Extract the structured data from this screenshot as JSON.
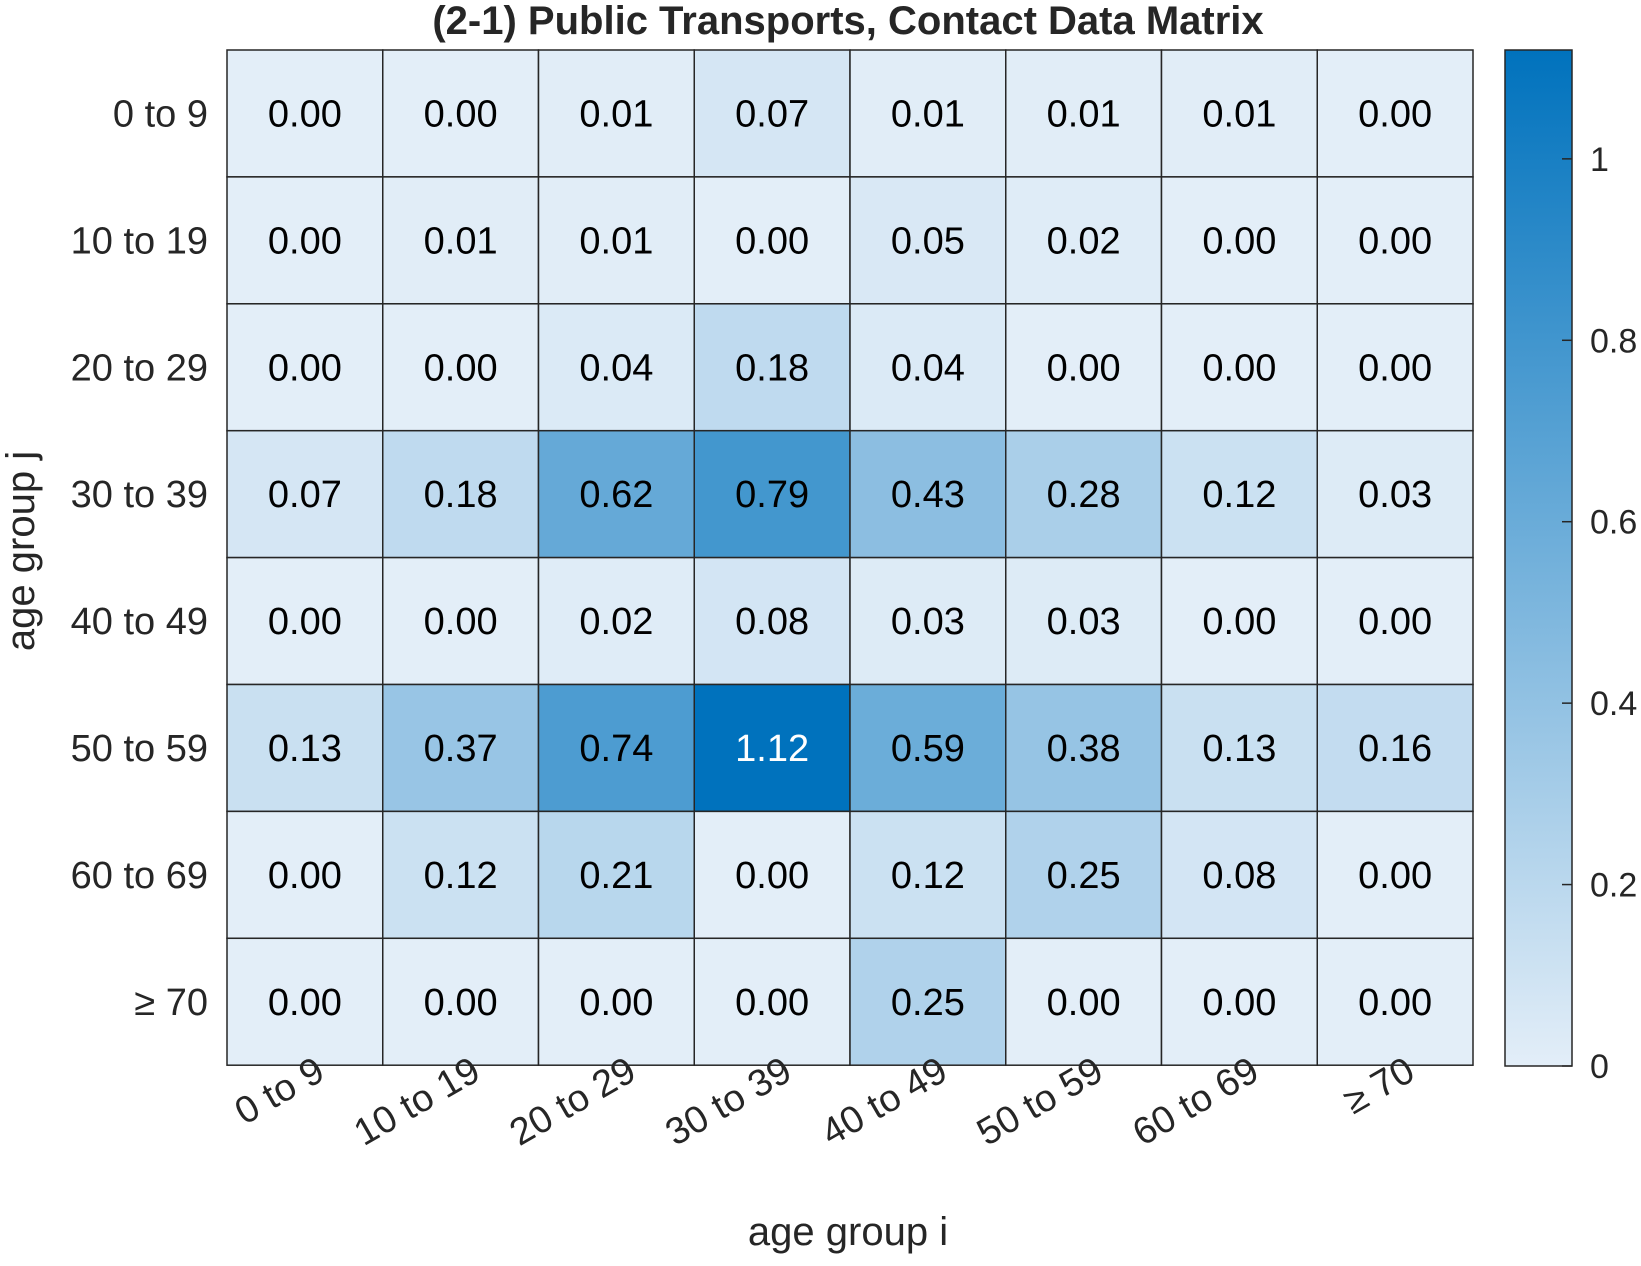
{
  "chart_data": {
    "type": "heatmap",
    "title": "(2-1) Public Transports, Contact Data Matrix",
    "xlabel": "age group i",
    "ylabel": "age group j",
    "x_categories": [
      "0 to 9",
      "10 to 19",
      "20 to 29",
      "30 to 39",
      "40 to 49",
      "50 to 59",
      "60 to 69",
      "≥ 70"
    ],
    "y_categories": [
      "0 to 9",
      "10 to 19",
      "20 to 29",
      "30 to 39",
      "40 to 49",
      "50 to 59",
      "60 to 69",
      "≥ 70"
    ],
    "values": [
      [
        0.0,
        0.0,
        0.01,
        0.07,
        0.01,
        0.01,
        0.01,
        0.0
      ],
      [
        0.0,
        0.01,
        0.01,
        0.0,
        0.05,
        0.02,
        0.0,
        0.0
      ],
      [
        0.0,
        0.0,
        0.04,
        0.18,
        0.04,
        0.0,
        0.0,
        0.0
      ],
      [
        0.07,
        0.18,
        0.62,
        0.79,
        0.43,
        0.28,
        0.12,
        0.03
      ],
      [
        0.0,
        0.0,
        0.02,
        0.08,
        0.03,
        0.03,
        0.0,
        0.0
      ],
      [
        0.13,
        0.37,
        0.74,
        1.12,
        0.59,
        0.38,
        0.13,
        0.16
      ],
      [
        0.0,
        0.12,
        0.21,
        0.0,
        0.12,
        0.25,
        0.08,
        0.0
      ],
      [
        0.0,
        0.0,
        0.0,
        0.0,
        0.25,
        0.0,
        0.0,
        0.0
      ]
    ],
    "value_labels": [
      [
        "0.00",
        "0.00",
        "0.01",
        "0.07",
        "0.01",
        "0.01",
        "0.01",
        "0.00"
      ],
      [
        "0.00",
        "0.01",
        "0.01",
        "0.00",
        "0.05",
        "0.02",
        "0.00",
        "0.00"
      ],
      [
        "0.00",
        "0.00",
        "0.04",
        "0.18",
        "0.04",
        "0.00",
        "0.00",
        "0.00"
      ],
      [
        "0.07",
        "0.18",
        "0.62",
        "0.79",
        "0.43",
        "0.28",
        "0.12",
        "0.03"
      ],
      [
        "0.00",
        "0.00",
        "0.02",
        "0.08",
        "0.03",
        "0.03",
        "0.00",
        "0.00"
      ],
      [
        "0.13",
        "0.37",
        "0.74",
        "1.12",
        "0.59",
        "0.38",
        "0.13",
        "0.16"
      ],
      [
        "0.00",
        "0.12",
        "0.21",
        "0.00",
        "0.12",
        "0.25",
        "0.08",
        "0.00"
      ],
      [
        "0.00",
        "0.00",
        "0.00",
        "0.00",
        "0.25",
        "0.00",
        "0.00",
        "0.00"
      ]
    ],
    "colorbar": {
      "range": [
        0,
        1.12
      ],
      "ticks": [
        0,
        0.2,
        0.4,
        0.6,
        0.8,
        1
      ],
      "tick_labels": [
        "0",
        "0.2",
        "0.4",
        "0.6",
        "0.8",
        "1"
      ],
      "color_low": "#e3eef8",
      "color_high": "#0072bd"
    },
    "grid": true
  }
}
